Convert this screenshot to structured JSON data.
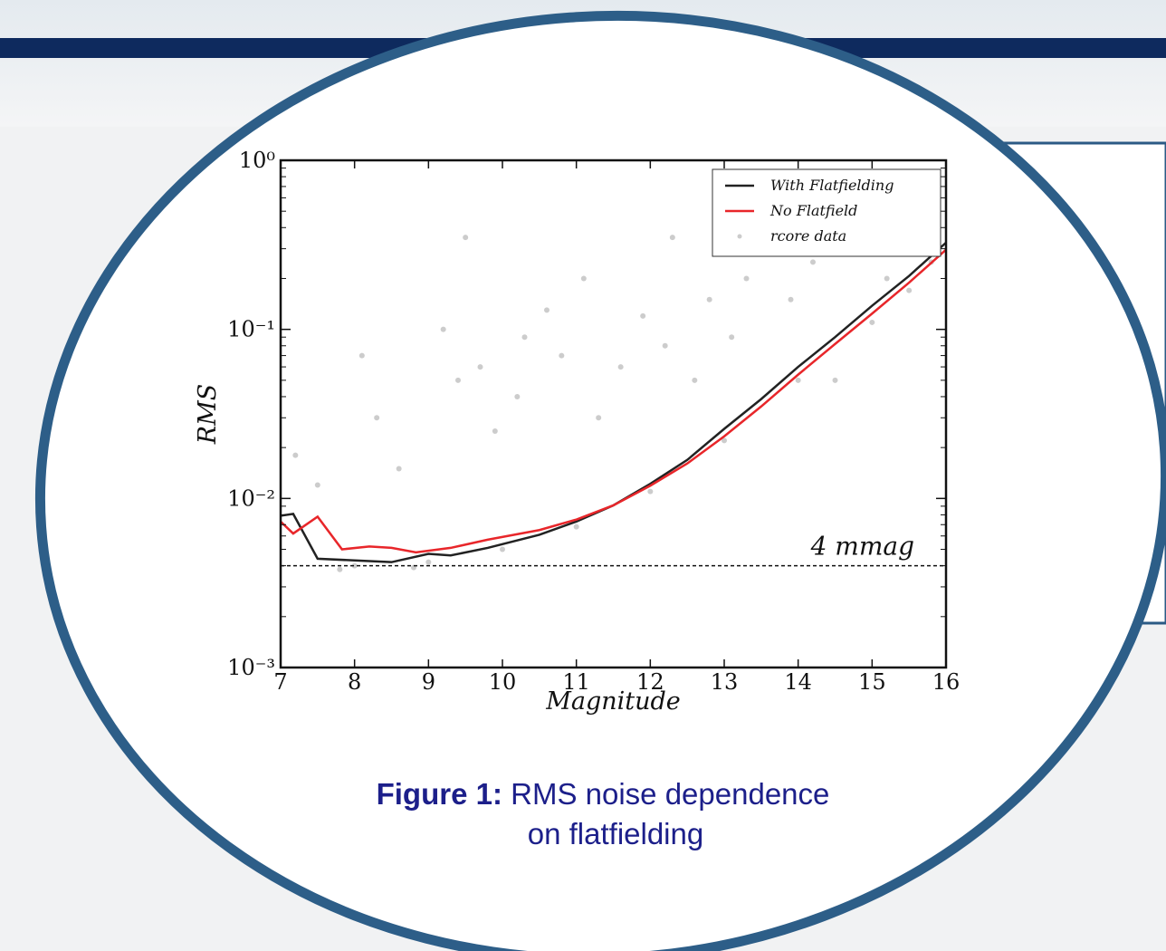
{
  "chart_data": {
    "type": "line",
    "xlabel": "Magnitude",
    "ylabel": "RMS",
    "xlim": [
      7,
      16
    ],
    "xticks": [
      7,
      8,
      9,
      10,
      11,
      12,
      13,
      14,
      15,
      16
    ],
    "ylim": [
      0.001,
      1
    ],
    "log_y": true,
    "yticks": [
      {
        "value": 1,
        "label": "10⁰"
      },
      {
        "value": 0.1,
        "label": "10⁻¹"
      },
      {
        "value": 0.01,
        "label": "10⁻²"
      },
      {
        "value": 0.001,
        "label": "10⁻³"
      }
    ],
    "legend": "upper right",
    "series": [
      {
        "name": "With Flatfielding",
        "color": "#222222",
        "x": [
          7,
          7.17,
          7.5,
          8,
          8.5,
          9,
          9.3,
          9.8,
          10.5,
          11,
          11.5,
          12,
          12.5,
          13,
          13.5,
          14,
          14.5,
          15,
          15.5,
          16
        ],
        "values": [
          0.0079,
          0.0081,
          0.0044,
          0.0043,
          0.0042,
          0.0047,
          0.0046,
          0.0051,
          0.0061,
          0.0073,
          0.0091,
          0.0122,
          0.0169,
          0.0258,
          0.0387,
          0.06,
          0.09,
          0.138,
          0.207,
          0.326
        ]
      },
      {
        "name": "No Flatfield",
        "color": "#e8262a",
        "x": [
          7,
          7.17,
          7.5,
          7.83,
          8.2,
          8.5,
          8.83,
          9.3,
          9.8,
          10.5,
          11,
          11.5,
          12,
          12.5,
          13,
          13.5,
          14,
          14.5,
          15,
          15.5,
          16
        ],
        "values": [
          0.0073,
          0.0062,
          0.0078,
          0.005,
          0.0052,
          0.0051,
          0.0048,
          0.0051,
          0.0057,
          0.0065,
          0.0075,
          0.0091,
          0.0119,
          0.0161,
          0.0233,
          0.035,
          0.054,
          0.082,
          0.124,
          0.189,
          0.296
        ]
      },
      {
        "name": "rcore data",
        "color": "#cccccc",
        "marker": "scatter",
        "x": [
          7.2,
          7.5,
          7.8,
          8,
          8.1,
          8.3,
          8.6,
          8.8,
          9,
          9.2,
          9.4,
          9.5,
          9.7,
          9.9,
          10,
          10.2,
          10.3,
          10.6,
          10.8,
          11,
          11.1,
          11.3,
          11.6,
          11.9,
          12,
          12.2,
          12.3,
          12.6,
          12.8,
          13,
          13.1,
          13.3,
          13.6,
          13.9,
          14,
          14.2,
          14.5,
          15,
          15.2,
          15.5,
          15.8
        ],
        "values": [
          0.018,
          0.012,
          0.0038,
          0.004,
          0.07,
          0.03,
          0.015,
          0.0039,
          0.0042,
          0.1,
          0.05,
          0.35,
          0.06,
          0.025,
          0.005,
          0.04,
          0.09,
          0.13,
          0.07,
          0.0068,
          0.2,
          0.03,
          0.06,
          0.12,
          0.011,
          0.08,
          0.35,
          0.05,
          0.15,
          0.022,
          0.09,
          0.2,
          0.3,
          0.15,
          0.05,
          0.25,
          0.05,
          0.11,
          0.2,
          0.17,
          0.25
        ]
      }
    ],
    "hline": {
      "value": 0.004,
      "label": "4 mmag"
    }
  },
  "caption": {
    "label": "Figure 1:",
    "text": "RMS noise dependence on flatfielding"
  }
}
